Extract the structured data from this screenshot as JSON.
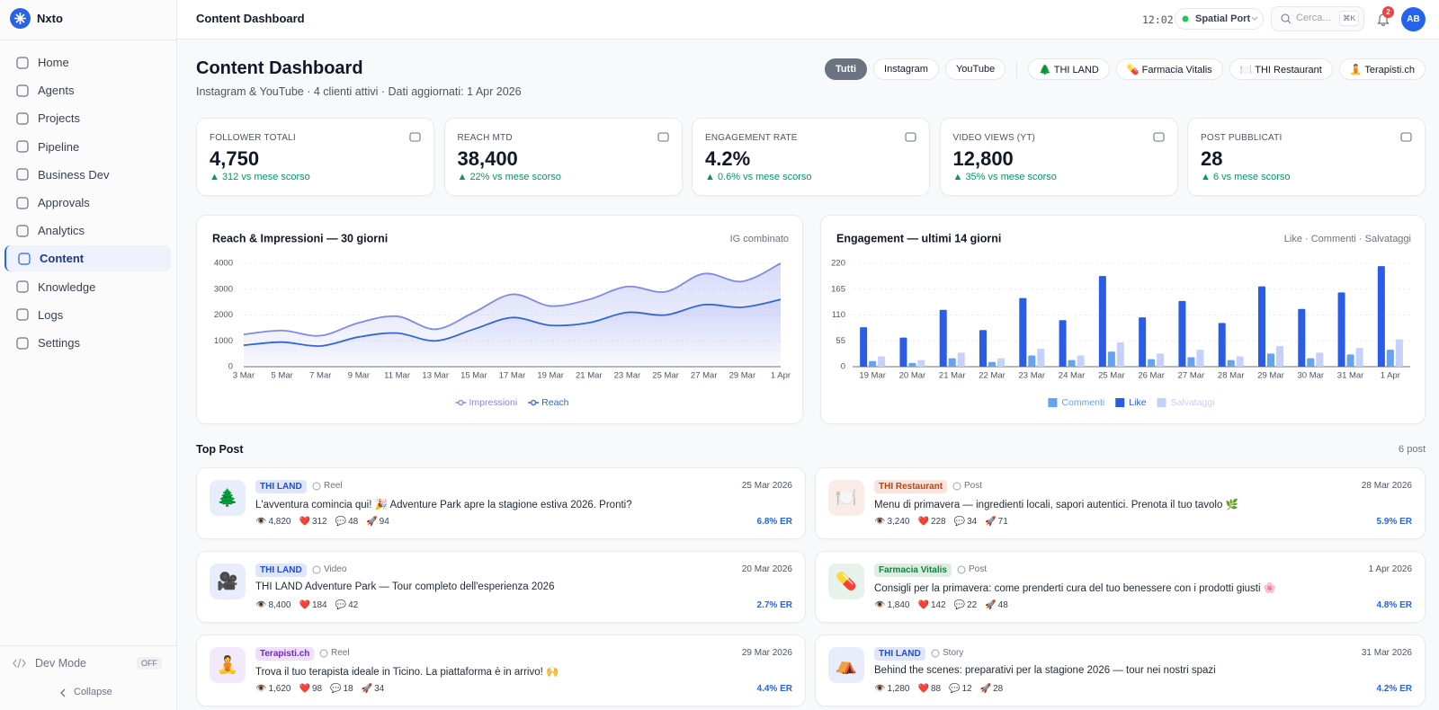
{
  "sidebar": {
    "brand": "Nxto",
    "nav": [
      {
        "label": "Home"
      },
      {
        "label": "Agents"
      },
      {
        "label": "Projects"
      },
      {
        "label": "Pipeline"
      },
      {
        "label": "Business Dev"
      },
      {
        "label": "Approvals"
      },
      {
        "label": "Analytics"
      },
      {
        "label": "Content",
        "active": true
      },
      {
        "label": "Knowledge"
      },
      {
        "label": "Logs"
      },
      {
        "label": "Settings"
      }
    ],
    "dev_mode": "Dev Mode",
    "dev_state": "OFF",
    "collapse": "Collapse"
  },
  "header": {
    "title": "Content Dashboard",
    "time": "12:02",
    "workspace": "Spatial Port",
    "search": "Cerca...",
    "shortcut": "⌘K",
    "notifications": "2",
    "avatar": "AB"
  },
  "page": {
    "title": "Content Dashboard",
    "subtitle": "Instagram & YouTube · 4 clienti attivi · Dati aggiornati: 1 Apr 2026",
    "platform_filters": [
      {
        "label": "Tutti",
        "active": true
      },
      {
        "label": "Instagram"
      },
      {
        "label": "YouTube"
      }
    ],
    "client_filters": [
      {
        "label": "🌲 THI LAND"
      },
      {
        "label": "💊 Farmacia Vitalis"
      },
      {
        "label": "🍽️ THI Restaurant"
      },
      {
        "label": "🧘 Terapisti.ch"
      }
    ]
  },
  "kpis": [
    {
      "label": "FOLLOWER TOTALI",
      "value": "4,750",
      "delta": "▲ 312 vs mese scorso"
    },
    {
      "label": "REACH MTD",
      "value": "38,400",
      "delta": "▲ 22% vs mese scorso"
    },
    {
      "label": "ENGAGEMENT RATE",
      "value": "4.2%",
      "delta": "▲ 0.6% vs mese scorso"
    },
    {
      "label": "VIDEO VIEWS (YT)",
      "value": "12,800",
      "delta": "▲ 35% vs mese scorso"
    },
    {
      "label": "POST PUBBLICATI",
      "value": "28",
      "delta": "▲ 6 vs mese scorso"
    }
  ],
  "chart_data": [
    {
      "type": "line",
      "title": "Reach & Impressioni — 30 giorni",
      "note": "IG combinato",
      "categories": [
        "3 Mar",
        "5 Mar",
        "7 Mar",
        "9 Mar",
        "11 Mar",
        "13 Mar",
        "15 Mar",
        "17 Mar",
        "19 Mar",
        "21 Mar",
        "23 Mar",
        "25 Mar",
        "27 Mar",
        "29 Mar",
        "1 Apr"
      ],
      "series": [
        {
          "name": "Impressioni",
          "color": "#8189e6",
          "values": [
            1250,
            1400,
            1200,
            1700,
            1950,
            1450,
            2100,
            2800,
            2350,
            2600,
            3100,
            2900,
            3600,
            3300,
            4000
          ]
        },
        {
          "name": "Reach",
          "color": "#3366d6",
          "values": [
            830,
            950,
            800,
            1150,
            1300,
            1000,
            1450,
            1900,
            1600,
            1700,
            2100,
            2000,
            2400,
            2300,
            2600
          ]
        }
      ],
      "ylim": [
        0,
        4000
      ],
      "yticks": [
        0,
        1000,
        2000,
        3000,
        4000
      ],
      "grid": true
    },
    {
      "type": "bar",
      "title": "Engagement — ultimi 14 giorni",
      "note": "Like · Commenti · Salvataggi",
      "categories": [
        "19 Mar",
        "20 Mar",
        "21 Mar",
        "22 Mar",
        "23 Mar",
        "24 Mar",
        "25 Mar",
        "26 Mar",
        "27 Mar",
        "28 Mar",
        "29 Mar",
        "30 Mar",
        "31 Mar",
        "1 Apr"
      ],
      "series": [
        {
          "name": "Like",
          "color": "#2b5ce6",
          "values": [
            84,
            62,
            121,
            78,
            146,
            99,
            193,
            105,
            140,
            93,
            171,
            123,
            158,
            214
          ]
        },
        {
          "name": "Commenti",
          "color": "#65a3ef",
          "values": [
            12,
            8,
            18,
            10,
            24,
            14,
            32,
            16,
            20,
            14,
            28,
            18,
            26,
            36
          ]
        },
        {
          "name": "Salvataggi",
          "color": "#c5d0fb",
          "values": [
            22,
            14,
            30,
            18,
            38,
            24,
            52,
            28,
            36,
            22,
            44,
            30,
            40,
            58
          ]
        }
      ],
      "ylim": [
        0,
        220
      ],
      "yticks": [
        0,
        55,
        110,
        165,
        220
      ],
      "grid": true
    }
  ],
  "top_posts": {
    "title": "Top Post",
    "count": "6 post",
    "posts": [
      {
        "icon": "🌲",
        "tag": "THI LAND",
        "color": "#1d4ed8",
        "type": "Reel",
        "date": "25 Mar 2026",
        "text": "L'avventura comincia qui! 🎉 Adventure Park apre la stagione estiva 2026. Pronti?",
        "stats": [
          {
            "icon": "👁️",
            "value": "4,820"
          },
          {
            "icon": "❤️",
            "value": "312"
          },
          {
            "icon": "💬",
            "value": "48"
          },
          {
            "icon": "🚀",
            "value": "94"
          }
        ],
        "er": "6.8% ER"
      },
      {
        "icon": "🍽️",
        "tag": "THI Restaurant",
        "color": "#c2410c",
        "type": "Post",
        "date": "28 Mar 2026",
        "text": "Menu di primavera — ingredienti locali, sapori autentici. Prenota il tuo tavolo 🌿",
        "stats": [
          {
            "icon": "👁️",
            "value": "3,240"
          },
          {
            "icon": "❤️",
            "value": "228"
          },
          {
            "icon": "💬",
            "value": "34"
          },
          {
            "icon": "🚀",
            "value": "71"
          }
        ],
        "er": "5.9% ER"
      },
      {
        "icon": "🎥",
        "tag": "THI LAND",
        "color": "#1d4ed8",
        "type": "Video",
        "date": "20 Mar 2026",
        "text": "THI LAND Adventure Park — Tour completo dell'esperienza 2026",
        "stats": [
          {
            "icon": "👁️",
            "value": "8,400"
          },
          {
            "icon": "❤️",
            "value": "184"
          },
          {
            "icon": "💬",
            "value": "42"
          }
        ],
        "er": "2.7% ER"
      },
      {
        "icon": "💊",
        "tag": "Farmacia Vitalis",
        "color": "#15803d",
        "type": "Post",
        "date": "1 Apr 2026",
        "text": "Consigli per la primavera: come prenderti cura del tuo benessere con i prodotti giusti 🌸",
        "stats": [
          {
            "icon": "👁️",
            "value": "1,840"
          },
          {
            "icon": "❤️",
            "value": "142"
          },
          {
            "icon": "💬",
            "value": "22"
          },
          {
            "icon": "🚀",
            "value": "48"
          }
        ],
        "er": "4.8% ER"
      },
      {
        "icon": "🧘",
        "tag": "Terapisti.ch",
        "color": "#7e22ce",
        "type": "Reel",
        "date": "29 Mar 2026",
        "text": "Trova il tuo terapista ideale in Ticino. La piattaforma è in arrivo! 🙌",
        "stats": [
          {
            "icon": "👁️",
            "value": "1,620"
          },
          {
            "icon": "❤️",
            "value": "98"
          },
          {
            "icon": "💬",
            "value": "18"
          },
          {
            "icon": "🚀",
            "value": "34"
          }
        ],
        "er": "4.4% ER"
      },
      {
        "icon": "⛺",
        "tag": "THI LAND",
        "color": "#1d4ed8",
        "type": "Story",
        "date": "31 Mar 2026",
        "text": "Behind the scenes: preparativi per la stagione 2026 — tour nei nostri spazi",
        "stats": [
          {
            "icon": "👁️",
            "value": "1,280"
          },
          {
            "icon": "❤️",
            "value": "88"
          },
          {
            "icon": "💬",
            "value": "12"
          },
          {
            "icon": "🚀",
            "value": "28"
          }
        ],
        "er": "4.2% ER"
      }
    ]
  }
}
